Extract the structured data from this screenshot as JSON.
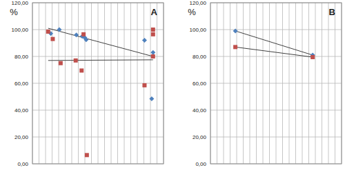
{
  "chart_data": [
    {
      "type": "scatter",
      "title": "A",
      "y_label": "%",
      "grid": true,
      "tick_labels": "y",
      "xlim": [
        0,
        20
      ],
      "xticks": [
        0,
        1,
        2,
        3,
        4,
        5,
        6,
        7,
        8,
        9,
        10,
        11,
        12,
        13,
        14,
        15,
        16,
        17,
        18,
        19,
        20
      ],
      "ylim": [
        0,
        120
      ],
      "yticks": [
        {
          "value": 0,
          "label": "0,00"
        },
        {
          "value": 20,
          "label": "20,00"
        },
        {
          "value": 40,
          "label": "40,00"
        },
        {
          "value": 60,
          "label": "60,00"
        },
        {
          "value": 80,
          "label": "80,00"
        },
        {
          "value": 100,
          "label": "100,00"
        },
        {
          "value": 120,
          "label": "120,00"
        }
      ],
      "series": [
        {
          "type": "scatter",
          "color": "#4f81bd",
          "marker": "diamond",
          "x": [
            2.8,
            4.1,
            6.7,
            7.6,
            8.0,
            8.2,
            17.1,
            18.2,
            18.4
          ],
          "values": [
            97,
            100,
            96,
            95,
            94,
            92.5,
            92,
            48.5,
            83
          ]
        },
        {
          "type": "scatter",
          "color": "#c0504d",
          "marker": "square",
          "x": [
            2.4,
            3.1,
            4.3,
            6.6,
            7.5,
            7.8,
            8.3,
            17.1,
            18.4,
            18.4,
            18.4
          ],
          "values": [
            98.5,
            93,
            75,
            77,
            69.5,
            96.5,
            6.5,
            58.5,
            100,
            96.5,
            80
          ]
        },
        {
          "type": "line",
          "color": "#404040",
          "marker": "none",
          "x": [
            2.4,
            18.4
          ],
          "values": [
            101,
            80
          ]
        },
        {
          "type": "line",
          "color": "#404040",
          "marker": "none",
          "x": [
            2.4,
            18.4
          ],
          "values": [
            77,
            77.5
          ]
        }
      ]
    },
    {
      "type": "scatter",
      "title": "B",
      "y_label": "%",
      "grid": true,
      "tick_labels": "y",
      "xlim": [
        0,
        20
      ],
      "xticks": [
        0,
        1,
        2,
        3,
        4,
        5,
        6,
        7,
        8,
        9,
        10,
        11,
        12,
        13,
        14,
        15,
        16,
        17,
        18,
        19,
        20
      ],
      "ylim": [
        0,
        120
      ],
      "yticks": [
        {
          "value": 0,
          "label": "0,00"
        },
        {
          "value": 20,
          "label": "20,00"
        },
        {
          "value": 40,
          "label": "40,00"
        },
        {
          "value": 60,
          "label": "60,00"
        },
        {
          "value": 80,
          "label": "80,00"
        },
        {
          "value": 100,
          "label": "100,00"
        },
        {
          "value": 120,
          "label": "120,00"
        }
      ],
      "series": [
        {
          "type": "line",
          "color": "#4f81bd",
          "marker": "diamond",
          "line_color": "#404040",
          "x": [
            3.8,
            15.6
          ],
          "values": [
            99,
            81
          ]
        },
        {
          "type": "line",
          "color": "#c0504d",
          "marker": "square",
          "x": [
            3.8,
            15.6
          ],
          "values": [
            87,
            79.5
          ]
        }
      ]
    }
  ]
}
